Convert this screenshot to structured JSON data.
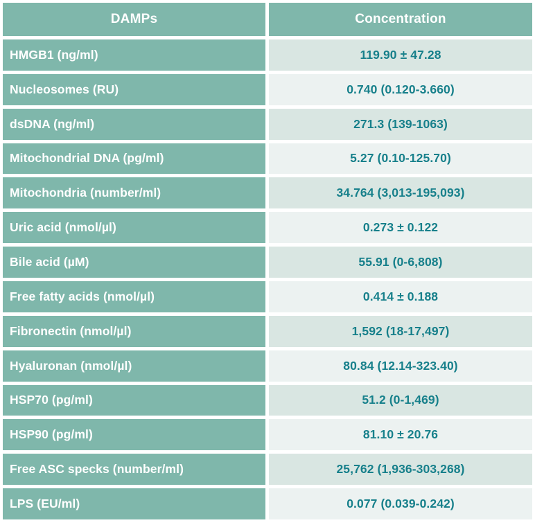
{
  "chart_data": {
    "type": "table",
    "columns": [
      "DAMPs",
      "Concentration"
    ],
    "rows": [
      [
        "HMGB1 (ng/ml)",
        "119.90 ± 47.28"
      ],
      [
        "Nucleosomes (RU)",
        "0.740 (0.120-3.660)"
      ],
      [
        "dsDNA (ng/ml)",
        "271.3 (139-1063)"
      ],
      [
        "Mitochondrial DNA (pg/ml)",
        "5.27 (0.10-125.70)"
      ],
      [
        "Mitochondria (number/ml)",
        "34.764 (3,013-195,093)"
      ],
      [
        "Uric acid (nmol/µl)",
        "0.273 ± 0.122"
      ],
      [
        "Bile acid (µM)",
        "55.91 (0-6,808)"
      ],
      [
        "Free fatty acids (nmol/µl)",
        "0.414 ± 0.188"
      ],
      [
        "Fibronectin (nmol/µl)",
        "1,592 (18-17,497)"
      ],
      [
        "Hyaluronan (nmol/µl)",
        "80.84 (12.14-323.40)"
      ],
      [
        "HSP70 (pg/ml)",
        "51.2 (0-1,469)"
      ],
      [
        "HSP90 (pg/ml)",
        "81.10 ± 20.76"
      ],
      [
        "Free ASC specks (number/ml)",
        "25,762 (1,936-303,268)"
      ],
      [
        "LPS (EU/ml)",
        "0.077 (0.039-0.242)"
      ]
    ]
  },
  "colors": {
    "header_and_label_background": "#7fb7ab",
    "value_row_shade_dark": "#d9e6e2",
    "value_row_shade_light": "#ecf2f1",
    "value_text": "#17808b",
    "label_text": "#ffffff",
    "gutter": "#ffffff"
  }
}
